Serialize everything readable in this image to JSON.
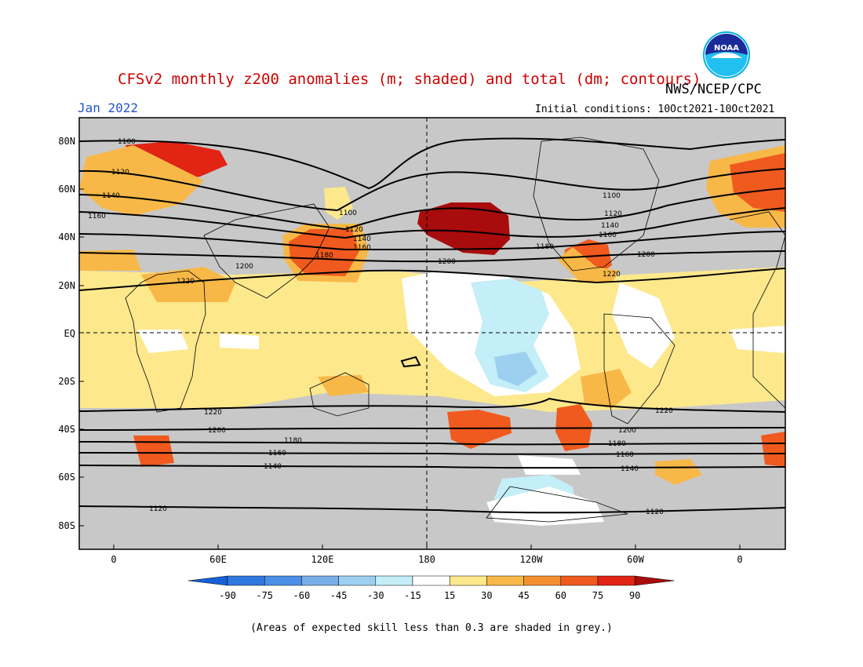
{
  "title": "CFSv2 monthly z200 anomalies (m; shaded) and total (dm; contours)",
  "organization": "NWS/NCEP/CPC",
  "logo_text": "NOAA",
  "month": "Jan 2022",
  "initial_conditions": "Initial conditions: 10Oct2021-10Oct2021",
  "lat_labels": [
    "80N",
    "60N",
    "40N",
    "20N",
    "EQ",
    "20S",
    "40S",
    "60S",
    "80S"
  ],
  "lon_labels": [
    "0",
    "60E",
    "120E",
    "180",
    "120W",
    "60W",
    "0"
  ],
  "colorbar": {
    "labels": [
      "-90",
      "-75",
      "-60",
      "-45",
      "-30",
      "-15",
      "15",
      "30",
      "45",
      "60",
      "75",
      "90"
    ],
    "colors": [
      "#1560d8",
      "#2f78e0",
      "#4b8fe6",
      "#78aee8",
      "#9dd0f0",
      "#c4eef8",
      "#ffffff",
      "#fde88c",
      "#f8b848",
      "#f59030",
      "#f05a1e",
      "#e22414",
      "#a80c0c"
    ]
  },
  "footnote": "(Areas of expected skill less than 0.3 are shaded in grey.)",
  "contour_labels": [
    "1100",
    "1120",
    "1140",
    "1160",
    "1100",
    "1120",
    "1140",
    "1160",
    "1180",
    "1200",
    "1220",
    "1200",
    "1100",
    "1120",
    "1140",
    "1160",
    "1180",
    "1220",
    "1200",
    "1220",
    "1200",
    "1180",
    "1160",
    "1140",
    "1120",
    "1220",
    "1200",
    "1180",
    "1160",
    "1140",
    "1120"
  ]
}
